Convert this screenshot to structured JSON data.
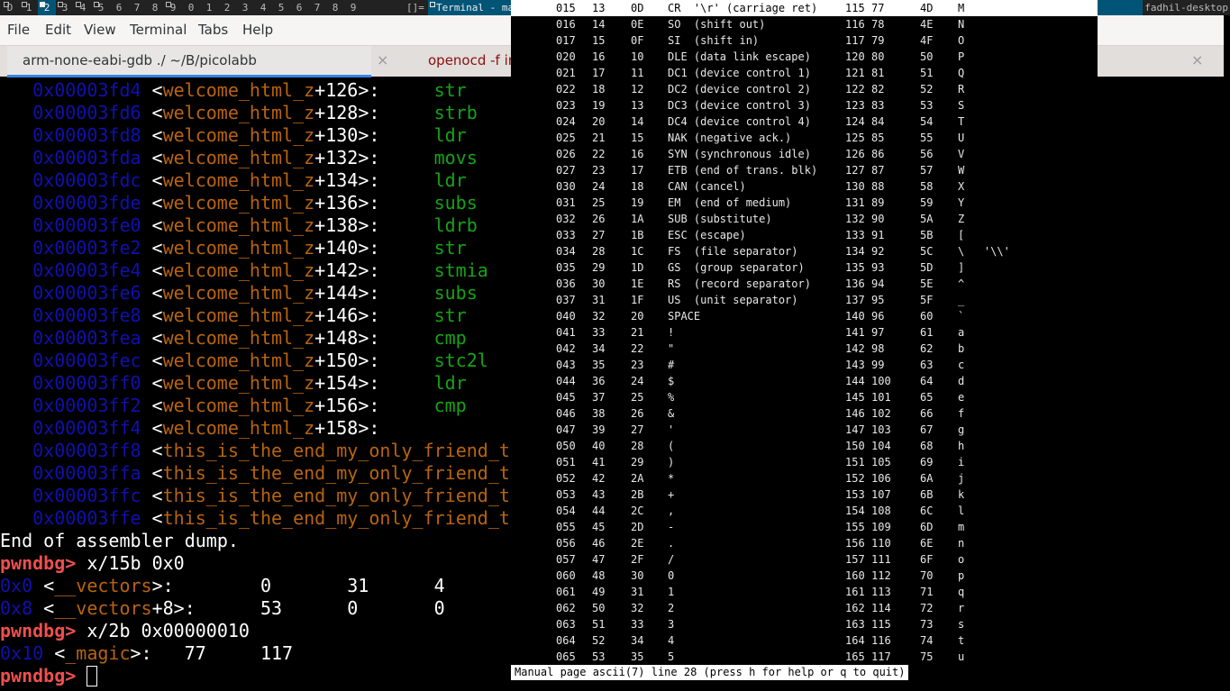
{
  "topbar": {
    "tags": [
      {
        "label": "D",
        "occupied": true
      },
      {
        "label": "1",
        "occupied": true
      },
      {
        "label": "2",
        "occupied": true,
        "selected": true
      },
      {
        "label": "3",
        "occupied": true
      },
      {
        "label": "4",
        "occupied": true
      },
      {
        "label": "5",
        "occupied": true
      },
      {
        "label": "6"
      },
      {
        "label": "7"
      },
      {
        "label": "8"
      },
      {
        "label": "9",
        "occupied": true
      },
      {
        "label": "0"
      },
      {
        "label": "1"
      },
      {
        "label": "2"
      },
      {
        "label": "3"
      },
      {
        "label": "4"
      },
      {
        "label": "5"
      },
      {
        "label": "6"
      },
      {
        "label": "7"
      },
      {
        "label": "8"
      },
      {
        "label": "9"
      }
    ],
    "layout": "[]=",
    "window_title": "Terminal - man",
    "hostname": "fadhil-desktop",
    "accent": "#005577"
  },
  "menubar": [
    "File",
    "Edit",
    "View",
    "Terminal",
    "Tabs",
    "Help"
  ],
  "tabs": [
    {
      "label": "arm-none-eabi-gdb ./ ~/B/picolabb",
      "active": true
    },
    {
      "label": "openocd -f in"
    }
  ],
  "tab_close": "×",
  "terminal": {
    "colors": {
      "address": "#1010b0",
      "symbol": "#b8640e",
      "mnemonic": "#16a316",
      "prompt": "#ef4f4f"
    },
    "disasm": [
      {
        "addr": "0x00003fd4",
        "sym": "welcome_html_z",
        "off": "+126>:",
        "mn": "str"
      },
      {
        "addr": "0x00003fd6",
        "sym": "welcome_html_z",
        "off": "+128>:",
        "mn": "strb"
      },
      {
        "addr": "0x00003fd8",
        "sym": "welcome_html_z",
        "off": "+130>:",
        "mn": "ldr"
      },
      {
        "addr": "0x00003fda",
        "sym": "welcome_html_z",
        "off": "+132>:",
        "mn": "movs"
      },
      {
        "addr": "0x00003fdc",
        "sym": "welcome_html_z",
        "off": "+134>:",
        "mn": "ldr"
      },
      {
        "addr": "0x00003fde",
        "sym": "welcome_html_z",
        "off": "+136>:",
        "mn": "subs"
      },
      {
        "addr": "0x00003fe0",
        "sym": "welcome_html_z",
        "off": "+138>:",
        "mn": "ldrb"
      },
      {
        "addr": "0x00003fe2",
        "sym": "welcome_html_z",
        "off": "+140>:",
        "mn": "str"
      },
      {
        "addr": "0x00003fe4",
        "sym": "welcome_html_z",
        "off": "+142>:",
        "mn": "stmia"
      },
      {
        "addr": "0x00003fe6",
        "sym": "welcome_html_z",
        "off": "+144>:",
        "mn": "subs"
      },
      {
        "addr": "0x00003fe8",
        "sym": "welcome_html_z",
        "off": "+146>:",
        "mn": "str"
      },
      {
        "addr": "0x00003fea",
        "sym": "welcome_html_z",
        "off": "+148>:",
        "mn": "cmp"
      },
      {
        "addr": "0x00003fec",
        "sym": "welcome_html_z",
        "off": "+150>:",
        "mn": "stc2l"
      },
      {
        "addr": "0x00003ff0",
        "sym": "welcome_html_z",
        "off": "+154>:",
        "mn": "ldr"
      },
      {
        "addr": "0x00003ff2",
        "sym": "welcome_html_z",
        "off": "+156>:",
        "mn": "cmp"
      },
      {
        "addr": "0x00003ff4",
        "sym": "welcome_html_z",
        "off": "+158>:",
        "mn": ""
      },
      {
        "addr": "0x00003ff8",
        "sym": "this_is_the_end_my_only_friend_t",
        "off": "",
        "mn": ""
      },
      {
        "addr": "0x00003ffa",
        "sym": "this_is_the_end_my_only_friend_t",
        "off": "",
        "mn": ""
      },
      {
        "addr": "0x00003ffc",
        "sym": "this_is_the_end_my_only_friend_t",
        "off": "",
        "mn": ""
      },
      {
        "addr": "0x00003ffe",
        "sym": "this_is_the_end_my_only_friend_t",
        "off": "",
        "mn": ""
      }
    ],
    "end_text": "End of assembler dump.",
    "prompt": "pwndbg>",
    "cmd1": "x/15b 0x0",
    "mem1": [
      {
        "addr": "0x0",
        "sym": "__vectors",
        "off": ">:",
        "vals": [
          "0",
          "31",
          "4"
        ]
      },
      {
        "addr": "0x8",
        "sym": "__vectors",
        "off": "+8>:",
        "vals": [
          "53",
          "0",
          "0"
        ]
      }
    ],
    "cmd2": "x/2b 0x00000010",
    "mem2": {
      "addr": "0x10",
      "sym": "_magic",
      "off": ">:",
      "vals": [
        "77",
        "117"
      ]
    }
  },
  "manpage": {
    "rows": [
      [
        "015",
        "13",
        "0D",
        "CR  '\\r' (carriage ret)",
        "115",
        "77",
        "4D",
        "M"
      ],
      [
        "016",
        "14",
        "0E",
        "SO  (shift out)",
        "116",
        "78",
        "4E",
        "N"
      ],
      [
        "017",
        "15",
        "0F",
        "SI  (shift in)",
        "117",
        "79",
        "4F",
        "O"
      ],
      [
        "020",
        "16",
        "10",
        "DLE (data link escape)",
        "120",
        "80",
        "50",
        "P"
      ],
      [
        "021",
        "17",
        "11",
        "DC1 (device control 1)",
        "121",
        "81",
        "51",
        "Q"
      ],
      [
        "022",
        "18",
        "12",
        "DC2 (device control 2)",
        "122",
        "82",
        "52",
        "R"
      ],
      [
        "023",
        "19",
        "13",
        "DC3 (device control 3)",
        "123",
        "83",
        "53",
        "S"
      ],
      [
        "024",
        "20",
        "14",
        "DC4 (device control 4)",
        "124",
        "84",
        "54",
        "T"
      ],
      [
        "025",
        "21",
        "15",
        "NAK (negative ack.)",
        "125",
        "85",
        "55",
        "U"
      ],
      [
        "026",
        "22",
        "16",
        "SYN (synchronous idle)",
        "126",
        "86",
        "56",
        "V"
      ],
      [
        "027",
        "23",
        "17",
        "ETB (end of trans. blk)",
        "127",
        "87",
        "57",
        "W"
      ],
      [
        "030",
        "24",
        "18",
        "CAN (cancel)",
        "130",
        "88",
        "58",
        "X"
      ],
      [
        "031",
        "25",
        "19",
        "EM  (end of medium)",
        "131",
        "89",
        "59",
        "Y"
      ],
      [
        "032",
        "26",
        "1A",
        "SUB (substitute)",
        "132",
        "90",
        "5A",
        "Z"
      ],
      [
        "033",
        "27",
        "1B",
        "ESC (escape)",
        "133",
        "91",
        "5B",
        "["
      ],
      [
        "034",
        "28",
        "1C",
        "FS  (file separator)",
        "134",
        "92",
        "5C",
        "\\   '\\\\'"
      ],
      [
        "035",
        "29",
        "1D",
        "GS  (group separator)",
        "135",
        "93",
        "5D",
        "]"
      ],
      [
        "036",
        "30",
        "1E",
        "RS  (record separator)",
        "136",
        "94",
        "5E",
        "^"
      ],
      [
        "037",
        "31",
        "1F",
        "US  (unit separator)",
        "137",
        "95",
        "5F",
        "_"
      ],
      [
        "040",
        "32",
        "20",
        "SPACE",
        "140",
        "96",
        "60",
        "`"
      ],
      [
        "041",
        "33",
        "21",
        "!",
        "141",
        "97",
        "61",
        "a"
      ],
      [
        "042",
        "34",
        "22",
        "\"",
        "142",
        "98",
        "62",
        "b"
      ],
      [
        "043",
        "35",
        "23",
        "#",
        "143",
        "99",
        "63",
        "c"
      ],
      [
        "044",
        "36",
        "24",
        "$",
        "144",
        "100",
        "64",
        "d"
      ],
      [
        "045",
        "37",
        "25",
        "%",
        "145",
        "101",
        "65",
        "e"
      ],
      [
        "046",
        "38",
        "26",
        "&",
        "146",
        "102",
        "66",
        "f"
      ],
      [
        "047",
        "39",
        "27",
        "'",
        "147",
        "103",
        "67",
        "g"
      ],
      [
        "050",
        "40",
        "28",
        "(",
        "150",
        "104",
        "68",
        "h"
      ],
      [
        "051",
        "41",
        "29",
        ")",
        "151",
        "105",
        "69",
        "i"
      ],
      [
        "052",
        "42",
        "2A",
        "*",
        "152",
        "106",
        "6A",
        "j"
      ],
      [
        "053",
        "43",
        "2B",
        "+",
        "153",
        "107",
        "6B",
        "k"
      ],
      [
        "054",
        "44",
        "2C",
        ",",
        "154",
        "108",
        "6C",
        "l"
      ],
      [
        "055",
        "45",
        "2D",
        "-",
        "155",
        "109",
        "6D",
        "m"
      ],
      [
        "056",
        "46",
        "2E",
        ".",
        "156",
        "110",
        "6E",
        "n"
      ],
      [
        "057",
        "47",
        "2F",
        "/",
        "157",
        "111",
        "6F",
        "o"
      ],
      [
        "060",
        "48",
        "30",
        "0",
        "160",
        "112",
        "70",
        "p"
      ],
      [
        "061",
        "49",
        "31",
        "1",
        "161",
        "113",
        "71",
        "q"
      ],
      [
        "062",
        "50",
        "32",
        "2",
        "162",
        "114",
        "72",
        "r"
      ],
      [
        "063",
        "51",
        "33",
        "3",
        "163",
        "115",
        "73",
        "s"
      ],
      [
        "064",
        "52",
        "34",
        "4",
        "164",
        "116",
        "74",
        "t"
      ],
      [
        "065",
        "53",
        "35",
        "5",
        "165",
        "117",
        "75",
        "u"
      ]
    ],
    "status": "Manual page ascii(7) line 28 (press h for help or q to quit)"
  }
}
